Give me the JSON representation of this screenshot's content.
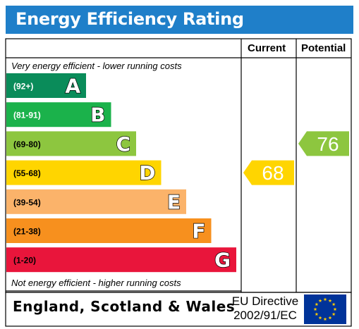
{
  "header": {
    "title": "Energy Efficiency Rating"
  },
  "columns": {
    "current": "Current",
    "potential": "Potential"
  },
  "notes": {
    "top": "Very energy efficient - lower running costs",
    "bottom": "Not energy efficient - higher running costs"
  },
  "footer": {
    "region": "England, Scotland & Wales",
    "directive_line1": "EU Directive",
    "directive_line2": "2002/91/EC"
  },
  "colors": {
    "title_bar": "#1f7fc9",
    "eu_flag": "#003399",
    "eu_stars": "#ffcc00"
  },
  "chart_data": {
    "type": "bar",
    "bands": [
      {
        "letter": "A",
        "range": "(92+)",
        "color": "#0a8c5a"
      },
      {
        "letter": "B",
        "range": "(81-91)",
        "color": "#1bb24b"
      },
      {
        "letter": "C",
        "range": "(69-80)",
        "color": "#8dc63f"
      },
      {
        "letter": "D",
        "range": "(55-68)",
        "color": "#ffd500"
      },
      {
        "letter": "E",
        "range": "(39-54)",
        "color": "#fbb36a"
      },
      {
        "letter": "F",
        "range": "(21-38)",
        "color": "#f7901e"
      },
      {
        "letter": "G",
        "range": "(1-20)",
        "color": "#e9153b"
      }
    ],
    "current": {
      "value": 68,
      "band": "D",
      "color": "#ffd500"
    },
    "potential": {
      "value": 76,
      "band": "C",
      "color": "#8dc63f"
    }
  }
}
